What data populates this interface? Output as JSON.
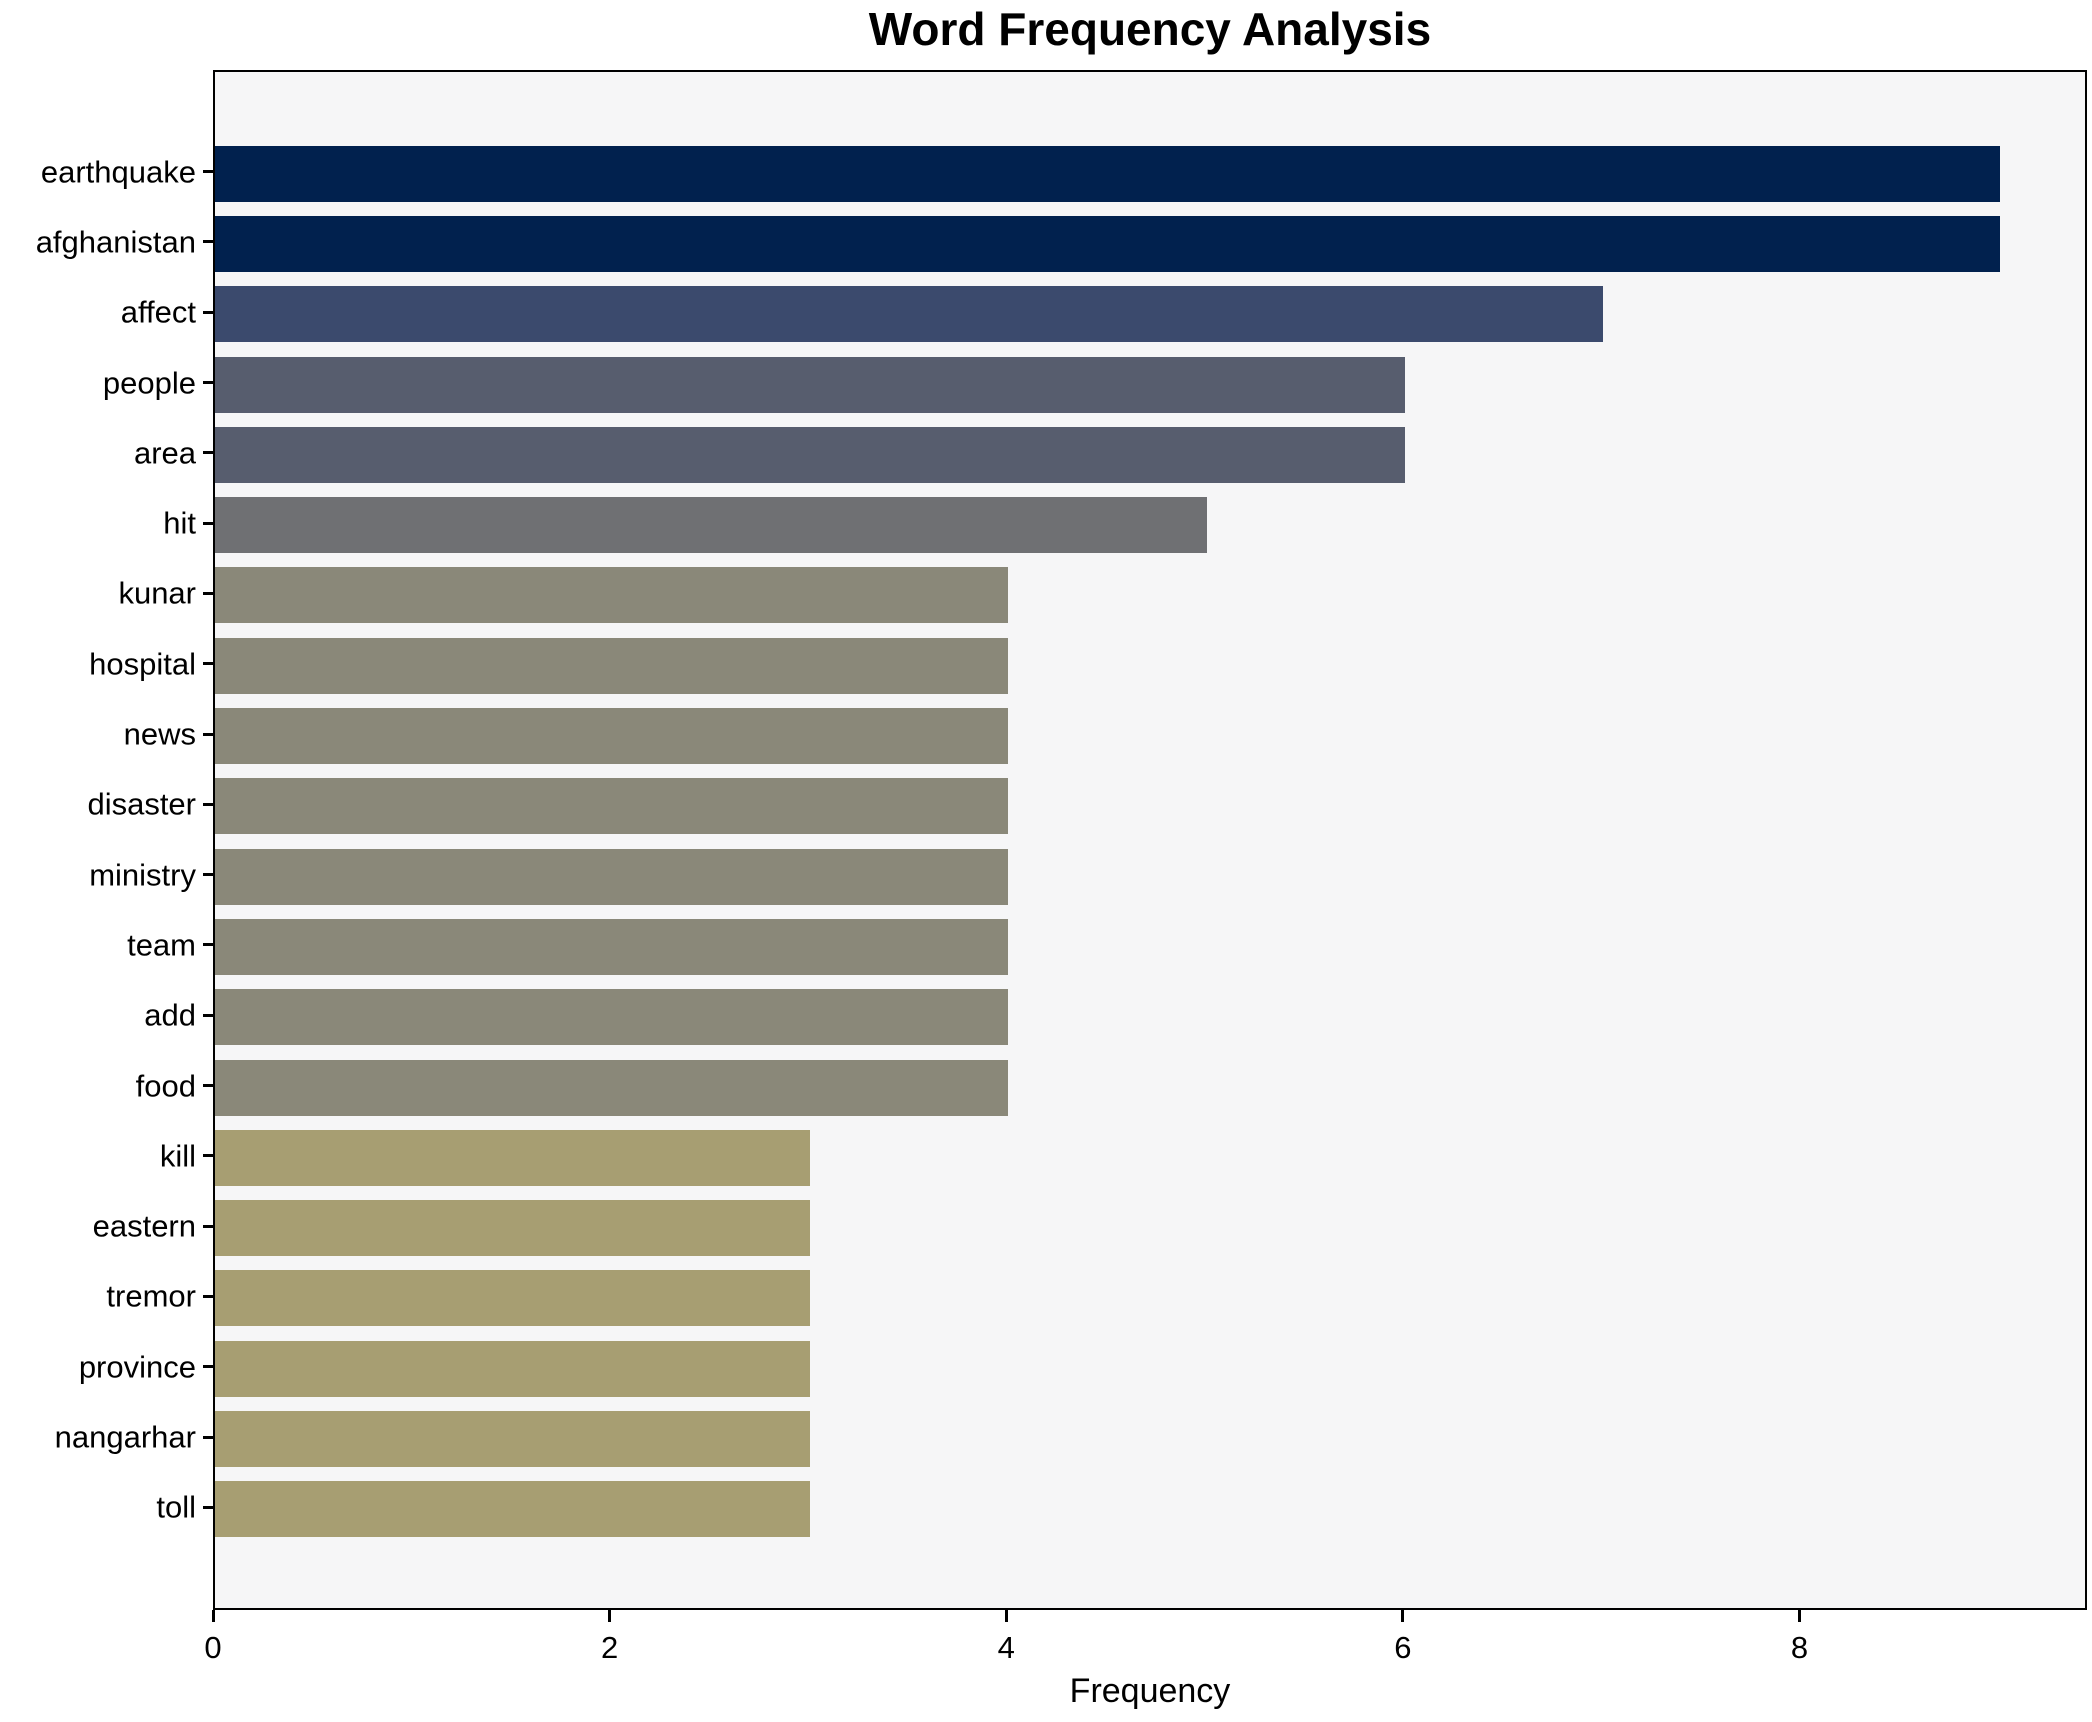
{
  "chart_data": {
    "type": "bar",
    "orientation": "horizontal",
    "title": "Word Frequency Analysis",
    "xlabel": "Frequency",
    "ylabel": "",
    "categories": [
      "earthquake",
      "afghanistan",
      "affect",
      "people",
      "area",
      "hit",
      "kunar",
      "hospital",
      "news",
      "disaster",
      "ministry",
      "team",
      "add",
      "food",
      "kill",
      "eastern",
      "tremor",
      "province",
      "nangarhar",
      "toll"
    ],
    "values": [
      9,
      9,
      7,
      6,
      6,
      5,
      4,
      4,
      4,
      4,
      4,
      4,
      4,
      4,
      3,
      3,
      3,
      3,
      3,
      3
    ],
    "bar_colors": [
      "#01214e",
      "#01214e",
      "#3b4a6d",
      "#575d6e",
      "#575d6e",
      "#6f7073",
      "#8a8879",
      "#8a8879",
      "#8a8879",
      "#8a8879",
      "#8a8879",
      "#8a8879",
      "#8a8879",
      "#8a8879",
      "#a79e72",
      "#a79e72",
      "#a79e72",
      "#a79e72",
      "#a79e72",
      "#a79e72"
    ],
    "xticks": [
      0,
      2,
      4,
      6,
      8
    ],
    "xlim": [
      0,
      9.45
    ],
    "grid": false,
    "legend": null,
    "colors": {
      "plot_background": "#f6f6f7",
      "figure_background": "#ffffff",
      "spine": "#000000",
      "text": "#000000"
    }
  }
}
